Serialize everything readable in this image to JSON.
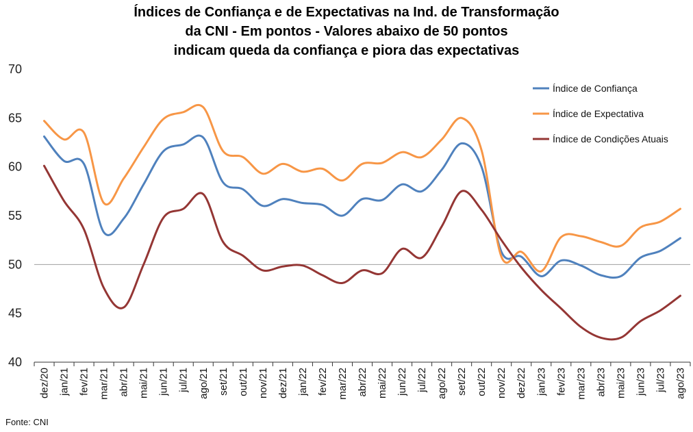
{
  "chart_data": {
    "type": "line",
    "title_lines": [
      "Índices de Confiança e de Expectativas na Ind. de Transformação",
      "da CNI - Em pontos - Valores abaixo de 50 pontos",
      "indicam queda da confiança e piora das expectativas"
    ],
    "categories": [
      "dez/20",
      "jan/21",
      "fev/21",
      "mar/21",
      "abr/21",
      "mai/21",
      "jun/21",
      "jul/21",
      "ago/21",
      "set/21",
      "out/21",
      "nov/21",
      "dez/21",
      "jan/22",
      "fev/22",
      "mar/22",
      "abr/22",
      "mai/22",
      "jun/22",
      "jul/22",
      "ago/22",
      "set/22",
      "out/22",
      "nov/22",
      "dez/22",
      "jan/23",
      "fev/23",
      "mar/23",
      "abr/23",
      "mai/23",
      "jun/23",
      "jul/23",
      "ago/23"
    ],
    "ylim": [
      40,
      70
    ],
    "yticks": [
      40,
      45,
      50,
      55,
      60,
      65,
      70
    ],
    "reference_line": 50,
    "legend_position": "top-right",
    "series": [
      {
        "name": "Índice de Confiança",
        "color": "#4F81BD",
        "values": [
          63.1,
          60.6,
          60.3,
          53.3,
          54.7,
          58.2,
          61.6,
          62.3,
          63.0,
          58.4,
          57.7,
          56.0,
          56.7,
          56.3,
          56.1,
          55.0,
          56.7,
          56.6,
          58.2,
          57.5,
          59.7,
          62.4,
          60.0,
          51.3,
          50.8,
          48.8,
          50.4,
          49.9,
          48.9,
          48.8,
          50.7,
          51.4,
          52.7
        ]
      },
      {
        "name": "Índice de Expectativa",
        "color": "#F79646",
        "values": [
          64.7,
          62.8,
          63.5,
          56.3,
          58.8,
          62.0,
          64.9,
          65.6,
          66.1,
          61.6,
          61.0,
          59.3,
          60.3,
          59.5,
          59.8,
          58.6,
          60.3,
          60.4,
          61.5,
          61.0,
          62.8,
          65.0,
          61.7,
          50.8,
          51.3,
          49.3,
          52.8,
          52.9,
          52.3,
          51.9,
          53.8,
          54.4,
          55.7
        ]
      },
      {
        "name": "Índice de Condições Atuais",
        "color": "#943634",
        "values": [
          60.1,
          56.5,
          53.6,
          47.6,
          45.6,
          50.0,
          54.8,
          55.7,
          57.2,
          52.3,
          50.9,
          49.4,
          49.8,
          49.9,
          48.9,
          48.1,
          49.4,
          49.1,
          51.6,
          50.7,
          53.9,
          57.5,
          55.6,
          52.5,
          49.7,
          47.4,
          45.5,
          43.6,
          42.5,
          42.5,
          44.2,
          45.3,
          46.8
        ]
      }
    ],
    "source": "Fonte: CNI"
  }
}
